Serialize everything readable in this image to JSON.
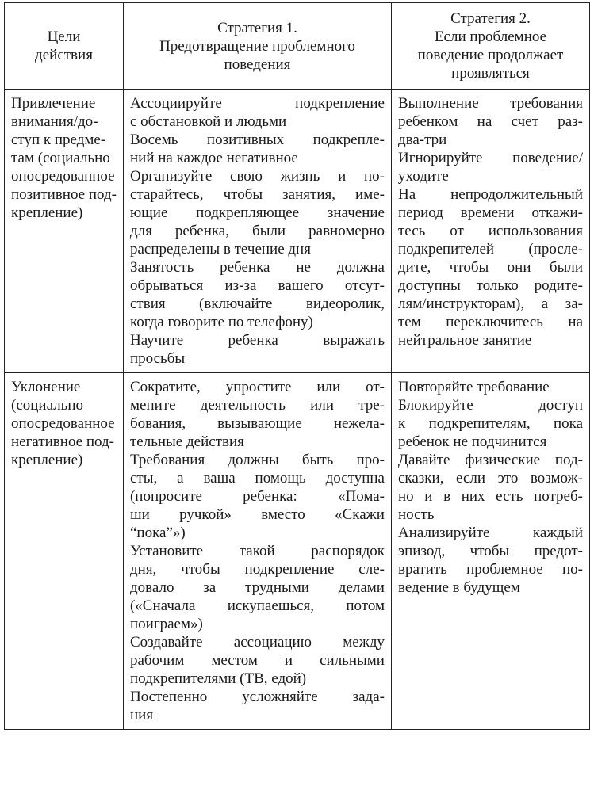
{
  "header": [
    [
      "Цели",
      "действия"
    ],
    [
      "Стратегия 1.",
      "Предотвращение проблемного",
      "поведения"
    ],
    [
      "Стратегия 2.",
      "Если проблемное",
      "поведение продолжает",
      "проявляться"
    ]
  ],
  "rows": [
    {
      "goal": [
        "Привлечение",
        "внимания/до-",
        "ступ к предме-",
        "там (социально",
        "опосредованное",
        "позитивное под-",
        "крепление)"
      ],
      "strategy1": [
        [
          "Ассоциируйте подкрепление",
          "с обстановкой и людьми"
        ],
        [
          "Восемь позитивных подкрепле-",
          "ний на каждое негативное"
        ],
        [
          "Организуйте свою жизнь и по-",
          "старайтесь, чтобы занятия, име-",
          "ющие подкрепляющее значение",
          "для ребенка, были равномерно",
          "распределены в течение дня"
        ],
        [
          "Занятость ребенка не должна",
          "обрываться из-за вашего отсут-",
          "ствия (включайте видеоролик,",
          "когда говорите по телефону)"
        ],
        [
          "Научите ребенка выражать",
          "просьбы"
        ]
      ],
      "strategy2": [
        [
          "Выполнение требования",
          "ребенком на счет раз-",
          "два-три"
        ],
        [
          "Игнорируйте поведение/",
          "уходите"
        ],
        [
          "На непродолжительный",
          "период времени откажи-",
          "тесь от использования",
          "подкрепителей (просле-",
          "дите, чтобы они были",
          "доступны только родите-",
          "лям/инструкторам), а за-",
          "тем переключитесь на",
          "нейтральное занятие"
        ]
      ]
    },
    {
      "goal": [
        "Уклонение",
        "(социально",
        "опосредованное",
        "негативное под-",
        "крепление)"
      ],
      "strategy1": [
        [
          "Сократите, упростите или от-",
          "мените деятельность или тре-",
          "бования, вызывающие нежела-",
          "тельные действия"
        ],
        [
          "Требования должны быть про-",
          "сты, а ваша помощь доступна",
          "(попросите ребенка: «Пома-",
          "ши ручкой» вместо «Скажи",
          "“пока”»)"
        ],
        [
          "Установите такой распорядок",
          "дня, чтобы подкрепление сле-",
          "довало за трудными делами",
          "(«Сначала искупаешься, потом",
          "поиграем»)"
        ],
        [
          "Создавайте ассоциацию между",
          "рабочим местом и сильными",
          "подкрепителями (ТВ, едой)"
        ],
        [
          "Постепенно усложняйте зада-",
          "ния"
        ]
      ],
      "strategy2": [
        [
          "Повторяйте требование"
        ],
        [
          "Блокируйте доступ",
          "к подкрепителям, пока",
          "ребенок не подчинится"
        ],
        [
          "Давайте физические под-",
          "сказки, если это возмож-",
          "но и в них есть потреб-",
          "ность"
        ],
        [
          "Анализируйте каждый",
          "эпизод, чтобы предот-",
          "вратить проблемное по-",
          "ведение в будущем"
        ]
      ]
    }
  ]
}
